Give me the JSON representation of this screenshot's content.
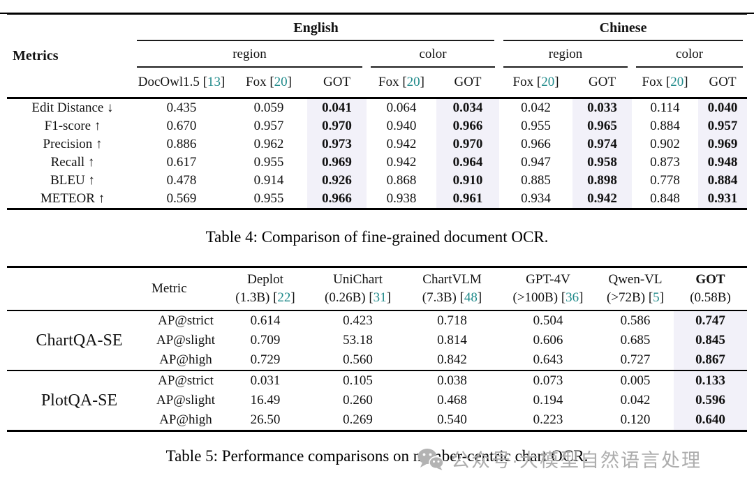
{
  "colors": {
    "citation": "#1f8a8a",
    "got_highlight": "#f2f1f9",
    "watermark_gray": "#adadad",
    "rule_black": "#000000"
  },
  "table4": {
    "metrics_header": "Metrics",
    "language_groups": [
      {
        "label": "English",
        "subgroups": [
          {
            "label": "region",
            "columns": [
              {
                "name": "DocOwl1.5",
                "cite": "13"
              },
              {
                "name": "Fox",
                "cite": "20"
              },
              {
                "name": "GOT"
              }
            ]
          },
          {
            "label": "color",
            "columns": [
              {
                "name": "Fox",
                "cite": "20"
              },
              {
                "name": "GOT"
              }
            ]
          }
        ]
      },
      {
        "label": "Chinese",
        "subgroups": [
          {
            "label": "region",
            "columns": [
              {
                "name": "Fox",
                "cite": "20"
              },
              {
                "name": "GOT"
              }
            ]
          },
          {
            "label": "color",
            "columns": [
              {
                "name": "Fox",
                "cite": "20"
              },
              {
                "name": "GOT"
              }
            ]
          }
        ]
      }
    ],
    "got_column_indices": [
      2,
      4,
      6,
      8
    ],
    "rows": [
      {
        "metric": "Edit Distance ↓",
        "values": [
          "0.435",
          "0.059",
          "0.041",
          "0.064",
          "0.034",
          "0.042",
          "0.033",
          "0.114",
          "0.040"
        ]
      },
      {
        "metric": "F1-score ↑",
        "values": [
          "0.670",
          "0.957",
          "0.970",
          "0.940",
          "0.966",
          "0.955",
          "0.965",
          "0.884",
          "0.957"
        ]
      },
      {
        "metric": "Precision ↑",
        "values": [
          "0.886",
          "0.962",
          "0.973",
          "0.942",
          "0.970",
          "0.966",
          "0.974",
          "0.902",
          "0.969"
        ]
      },
      {
        "metric": "Recall ↑",
        "values": [
          "0.617",
          "0.955",
          "0.969",
          "0.942",
          "0.964",
          "0.947",
          "0.958",
          "0.873",
          "0.948"
        ]
      },
      {
        "metric": "BLEU ↑",
        "values": [
          "0.478",
          "0.914",
          "0.926",
          "0.868",
          "0.910",
          "0.885",
          "0.898",
          "0.778",
          "0.884"
        ]
      },
      {
        "metric": "METEOR ↑",
        "values": [
          "0.569",
          "0.955",
          "0.966",
          "0.938",
          "0.961",
          "0.934",
          "0.942",
          "0.848",
          "0.931"
        ]
      }
    ],
    "caption": "Table 4: Comparison of fine-grained document OCR."
  },
  "table5": {
    "columns": [
      {
        "name": "Metric"
      },
      {
        "name": "Deplot",
        "size": "(1.3B)",
        "cite": "22"
      },
      {
        "name": "UniChart",
        "size": "(0.26B)",
        "cite": "31"
      },
      {
        "name": "ChartVLM",
        "size": "(7.3B)",
        "cite": "48"
      },
      {
        "name": "GPT-4V",
        "size": "(>100B)",
        "cite": "36"
      },
      {
        "name": "Qwen-VL",
        "size": "(>72B)",
        "cite": "5"
      },
      {
        "name": "GOT",
        "size": "(0.58B)",
        "bold": true
      }
    ],
    "got_value_index": 5,
    "sections": [
      {
        "dataset": "ChartQA-SE",
        "rows": [
          {
            "metric": "AP@strict",
            "values": [
              "0.614",
              "0.423",
              "0.718",
              "0.504",
              "0.586",
              "0.747"
            ]
          },
          {
            "metric": "AP@slight",
            "values": [
              "0.709",
              "53.18",
              "0.814",
              "0.606",
              "0.685",
              "0.845"
            ]
          },
          {
            "metric": "AP@high",
            "values": [
              "0.729",
              "0.560",
              "0.842",
              "0.643",
              "0.727",
              "0.867"
            ]
          }
        ]
      },
      {
        "dataset": "PlotQA-SE",
        "rows": [
          {
            "metric": "AP@strict",
            "values": [
              "0.031",
              "0.105",
              "0.038",
              "0.073",
              "0.005",
              "0.133"
            ]
          },
          {
            "metric": "AP@slight",
            "values": [
              "16.49",
              "0.260",
              "0.468",
              "0.194",
              "0.042",
              "0.596"
            ]
          },
          {
            "metric": "AP@high",
            "values": [
              "26.50",
              "0.269",
              "0.540",
              "0.223",
              "0.120",
              "0.640"
            ]
          }
        ]
      }
    ],
    "caption": "Table 5: Performance comparisons on number-centric chart OCR."
  },
  "watermark": {
    "icon": "wechat-icon",
    "text": "公众号·大模型自然语言处理"
  }
}
